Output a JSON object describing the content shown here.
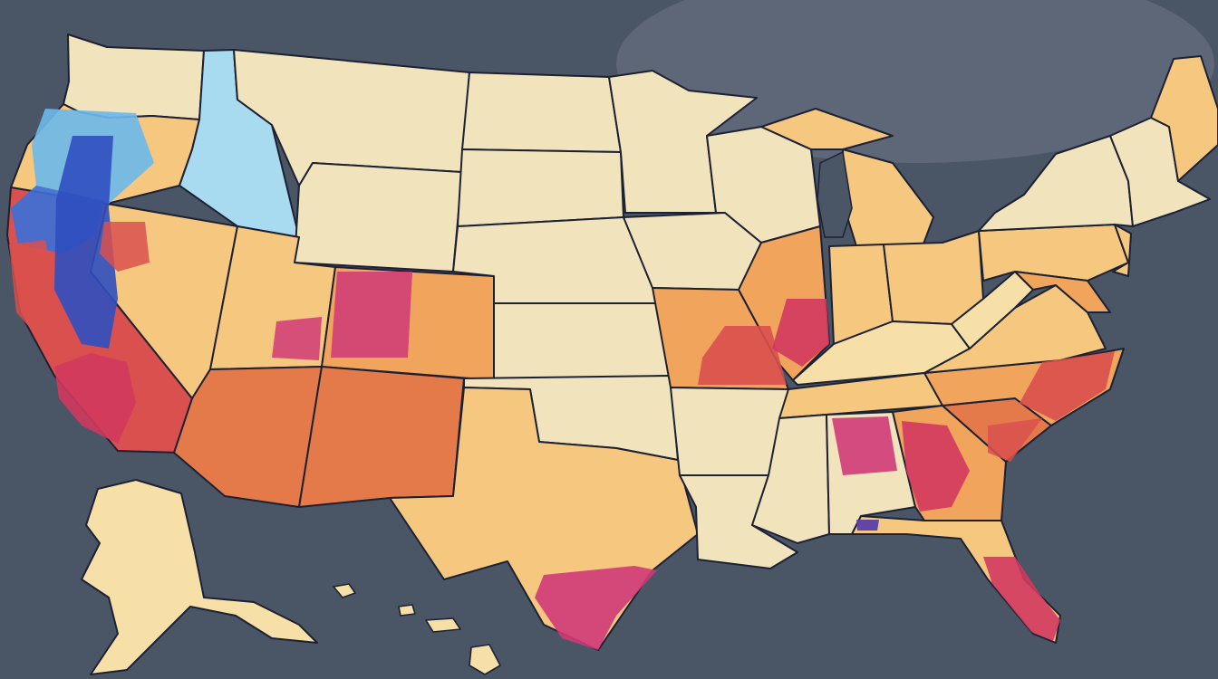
{
  "map": {
    "background": "#4a5566",
    "ocean_haze": "#5d6778",
    "border_color": "#1c2133",
    "palette": {
      "cream": "#f1e4bd",
      "pale": "#f7e0a8",
      "light_orange": "#f6c77e",
      "orange": "#f0a45c",
      "deep_orange": "#e47a4a",
      "red": "#d9504e",
      "crimson": "#d2395f",
      "magenta": "#cf3a78",
      "light_blue": "#a8daf0",
      "sky_blue": "#6cb8e8",
      "blue": "#3a6fd8",
      "deep_blue": "#2f4fc0",
      "purple": "#5a3fa8"
    },
    "states": [
      {
        "id": "WA",
        "fill": "cream"
      },
      {
        "id": "OR",
        "fill": "light_orange"
      },
      {
        "id": "CA",
        "fill": "red"
      },
      {
        "id": "NV",
        "fill": "light_orange"
      },
      {
        "id": "ID",
        "fill": "light_blue"
      },
      {
        "id": "MT",
        "fill": "cream"
      },
      {
        "id": "WY",
        "fill": "cream"
      },
      {
        "id": "UT",
        "fill": "light_orange"
      },
      {
        "id": "CO",
        "fill": "orange"
      },
      {
        "id": "AZ",
        "fill": "deep_orange"
      },
      {
        "id": "NM",
        "fill": "deep_orange"
      },
      {
        "id": "ND",
        "fill": "cream"
      },
      {
        "id": "SD",
        "fill": "cream"
      },
      {
        "id": "NE",
        "fill": "cream"
      },
      {
        "id": "KS",
        "fill": "cream"
      },
      {
        "id": "OK",
        "fill": "cream"
      },
      {
        "id": "TX",
        "fill": "light_orange"
      },
      {
        "id": "MN",
        "fill": "cream"
      },
      {
        "id": "IA",
        "fill": "cream"
      },
      {
        "id": "MO",
        "fill": "orange"
      },
      {
        "id": "AR",
        "fill": "cream"
      },
      {
        "id": "LA",
        "fill": "cream"
      },
      {
        "id": "WI",
        "fill": "cream"
      },
      {
        "id": "IL",
        "fill": "orange"
      },
      {
        "id": "MI",
        "fill": "light_orange"
      },
      {
        "id": "IN",
        "fill": "light_orange"
      },
      {
        "id": "OH",
        "fill": "light_orange"
      },
      {
        "id": "KY",
        "fill": "pale"
      },
      {
        "id": "TN",
        "fill": "light_orange"
      },
      {
        "id": "MS",
        "fill": "cream"
      },
      {
        "id": "AL",
        "fill": "cream"
      },
      {
        "id": "GA",
        "fill": "orange"
      },
      {
        "id": "FL",
        "fill": "light_orange"
      },
      {
        "id": "SC",
        "fill": "deep_orange"
      },
      {
        "id": "NC",
        "fill": "orange"
      },
      {
        "id": "VA",
        "fill": "light_orange"
      },
      {
        "id": "WV",
        "fill": "pale"
      },
      {
        "id": "PA",
        "fill": "light_orange"
      },
      {
        "id": "NY",
        "fill": "cream"
      },
      {
        "id": "MD",
        "fill": "orange"
      },
      {
        "id": "NJ",
        "fill": "light_orange"
      },
      {
        "id": "NE_COAST",
        "fill": "cream"
      },
      {
        "id": "ME",
        "fill": "light_orange"
      },
      {
        "id": "AK",
        "fill": "pale"
      },
      {
        "id": "HI",
        "fill": "pale"
      }
    ],
    "hotspots": [
      {
        "id": "ca-coast-blue",
        "fill": "blue"
      },
      {
        "id": "ca-valley-deep-blue",
        "fill": "deep_blue"
      },
      {
        "id": "or-sky",
        "fill": "sky_blue"
      },
      {
        "id": "ca-south-crimson",
        "fill": "crimson"
      },
      {
        "id": "nv-red",
        "fill": "red"
      },
      {
        "id": "ut-magenta",
        "fill": "magenta"
      },
      {
        "id": "co-magenta",
        "fill": "magenta"
      },
      {
        "id": "mo-red",
        "fill": "red"
      },
      {
        "id": "il-crimson",
        "fill": "crimson"
      },
      {
        "id": "al-magenta",
        "fill": "magenta"
      },
      {
        "id": "ga-crimson",
        "fill": "crimson"
      },
      {
        "id": "nc-red",
        "fill": "red"
      },
      {
        "id": "tx-magenta",
        "fill": "magenta"
      },
      {
        "id": "fl-crimson",
        "fill": "crimson"
      },
      {
        "id": "fl-purple",
        "fill": "purple"
      }
    ]
  }
}
